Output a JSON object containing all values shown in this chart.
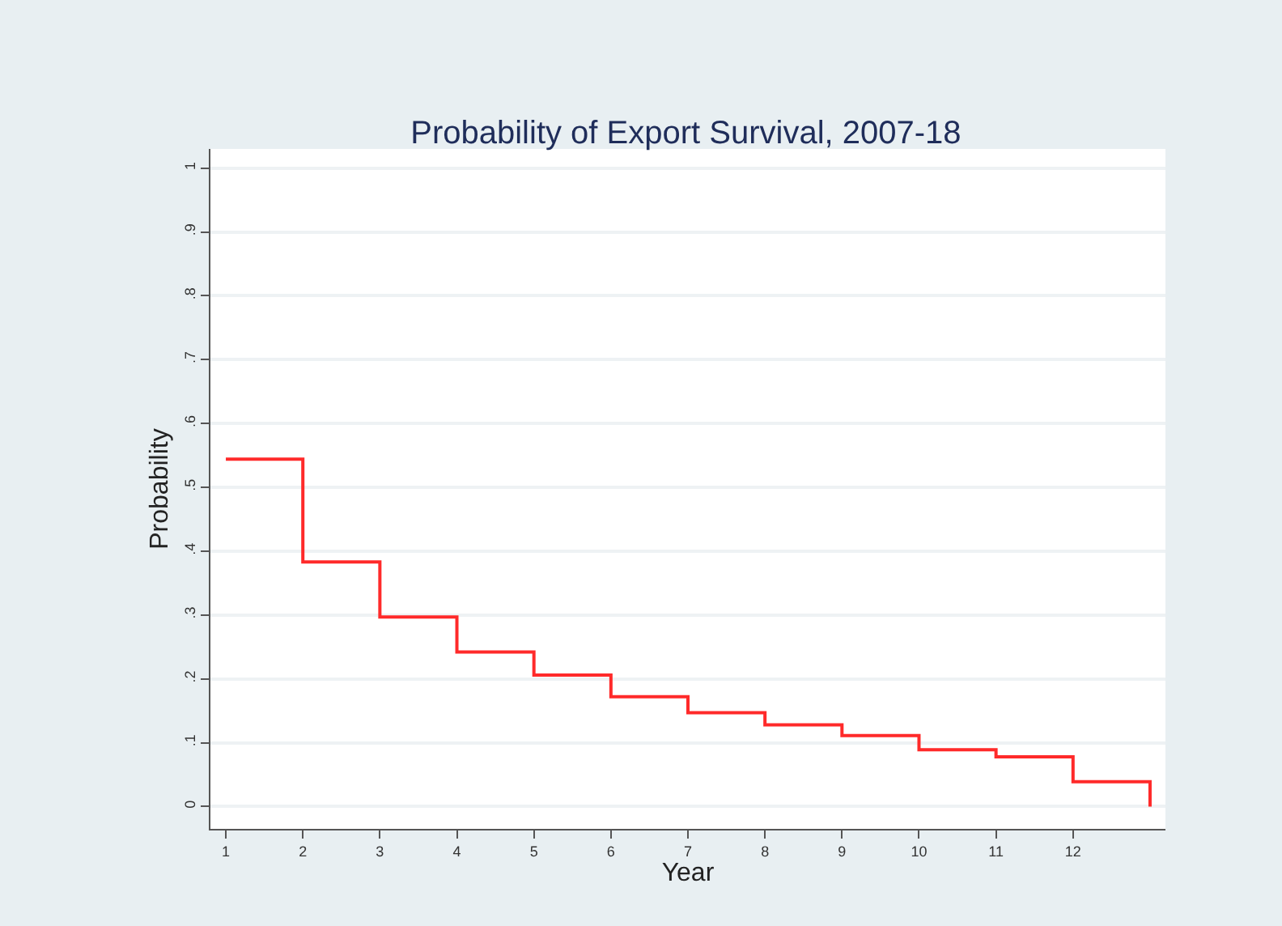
{
  "chart_data": {
    "type": "step",
    "title": "Probability of Export Survival, 2007-18",
    "xlabel": "Year",
    "ylabel": "Probability",
    "x": [
      1,
      2,
      3,
      4,
      5,
      6,
      7,
      8,
      9,
      10,
      11,
      12,
      13
    ],
    "series": [
      {
        "color": "#ff2a2a",
        "values": [
          0.544,
          0.383,
          0.297,
          0.242,
          0.206,
          0.172,
          0.147,
          0.128,
          0.111,
          0.089,
          0.078,
          0.039,
          0.0
        ]
      }
    ],
    "xlim": [
      0.8,
      13.2
    ],
    "xticks": [
      1,
      2,
      3,
      4,
      5,
      6,
      7,
      8,
      9,
      10,
      11,
      12
    ],
    "ylim": [
      -0.035,
      1.03
    ],
    "yticks": [
      {
        "value": 0,
        "label": "0"
      },
      {
        "value": 0.1,
        "label": ".1"
      },
      {
        "value": 0.2,
        "label": ".2"
      },
      {
        "value": 0.3,
        "label": ".3"
      },
      {
        "value": 0.4,
        "label": ".4"
      },
      {
        "value": 0.5,
        "label": ".5"
      },
      {
        "value": 0.6,
        "label": ".6"
      },
      {
        "value": 0.7,
        "label": ".7"
      },
      {
        "value": 0.8,
        "label": ".8"
      },
      {
        "value": 0.9,
        "label": ".9"
      },
      {
        "value": 1,
        "label": "1"
      }
    ],
    "grid": "y"
  }
}
